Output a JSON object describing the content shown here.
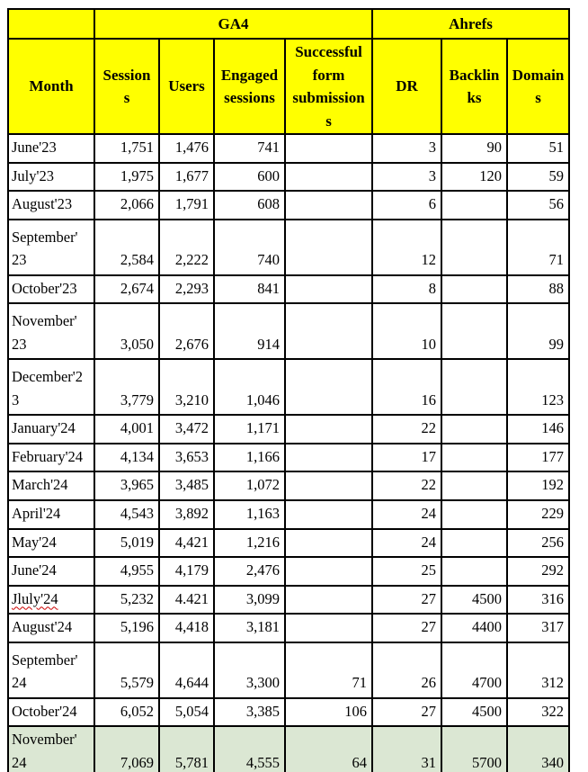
{
  "table": {
    "header_groups": [
      {
        "label": "",
        "colspan": 1
      },
      {
        "label": "GA4",
        "colspan": 4
      },
      {
        "label": "Ahrefs",
        "colspan": 3
      }
    ],
    "column_headers": [
      "Month",
      "Session\ns",
      "Users",
      "Engaged\nsessions",
      "Successful\nform\nsubmission\ns",
      "DR",
      "Backlin\nks",
      "Domain\ns"
    ],
    "rows": [
      {
        "month": "June'23",
        "tall": false,
        "highlighted": false,
        "misspelled": false,
        "values": [
          "1,751",
          "1,476",
          "741",
          "",
          "3",
          "90",
          "51"
        ]
      },
      {
        "month": "July'23",
        "tall": false,
        "highlighted": false,
        "misspelled": false,
        "values": [
          "1,975",
          "1,677",
          "600",
          "",
          "3",
          "120",
          "59"
        ]
      },
      {
        "month": "August'23",
        "tall": false,
        "highlighted": false,
        "misspelled": false,
        "values": [
          "2,066",
          "1,791",
          "608",
          "",
          "6",
          "",
          "56"
        ]
      },
      {
        "month": "September'\n23",
        "tall": true,
        "highlighted": false,
        "misspelled": false,
        "values": [
          "2,584",
          "2,222",
          "740",
          "",
          "12",
          "",
          "71"
        ]
      },
      {
        "month": "October'23",
        "tall": false,
        "highlighted": false,
        "misspelled": false,
        "values": [
          "2,674",
          "2,293",
          "841",
          "",
          "8",
          "",
          "88"
        ]
      },
      {
        "month": "November'\n23",
        "tall": true,
        "highlighted": false,
        "misspelled": false,
        "values": [
          "3,050",
          "2,676",
          "914",
          "",
          "10",
          "",
          "99"
        ]
      },
      {
        "month": "December'2\n3",
        "tall": true,
        "highlighted": false,
        "misspelled": false,
        "values": [
          "3,779",
          "3,210",
          "1,046",
          "",
          "16",
          "",
          "123"
        ]
      },
      {
        "month": "January'24",
        "tall": false,
        "highlighted": false,
        "misspelled": false,
        "values": [
          "4,001",
          "3,472",
          "1,171",
          "",
          "22",
          "",
          "146"
        ]
      },
      {
        "month": "February'24",
        "tall": false,
        "highlighted": false,
        "misspelled": false,
        "values": [
          "4,134",
          "3,653",
          "1,166",
          "",
          "17",
          "",
          "177"
        ]
      },
      {
        "month": "March'24",
        "tall": false,
        "highlighted": false,
        "misspelled": false,
        "values": [
          "3,965",
          "3,485",
          "1,072",
          "",
          "22",
          "",
          "192"
        ]
      },
      {
        "month": "April'24",
        "tall": false,
        "highlighted": false,
        "misspelled": false,
        "values": [
          "4,543",
          "3,892",
          "1,163",
          "",
          "24",
          "",
          "229"
        ]
      },
      {
        "month": "May'24",
        "tall": false,
        "highlighted": false,
        "misspelled": false,
        "values": [
          "5,019",
          "4,421",
          "1,216",
          "",
          "24",
          "",
          "256"
        ]
      },
      {
        "month": "June'24",
        "tall": false,
        "highlighted": false,
        "misspelled": false,
        "values": [
          "4,955",
          "4,179",
          "2,476",
          "",
          "25",
          "",
          "292"
        ]
      },
      {
        "month": "Jluly'24",
        "tall": false,
        "highlighted": false,
        "misspelled": true,
        "values": [
          "5,232",
          "4.421",
          "3,099",
          "",
          "27",
          "4500",
          "316"
        ]
      },
      {
        "month": "August'24",
        "tall": false,
        "highlighted": false,
        "misspelled": false,
        "values": [
          "5,196",
          "4,418",
          "3,181",
          "",
          "27",
          "4400",
          "317"
        ]
      },
      {
        "month": "September'\n24",
        "tall": true,
        "highlighted": false,
        "misspelled": false,
        "values": [
          "5,579",
          "4,644",
          "3,300",
          "71",
          "26",
          "4700",
          "312"
        ]
      },
      {
        "month": "October'24",
        "tall": false,
        "highlighted": false,
        "misspelled": false,
        "values": [
          "6,052",
          "5,054",
          "3,385",
          "106",
          "27",
          "4500",
          "322"
        ]
      },
      {
        "month": "November'\n24",
        "tall": true,
        "highlighted": true,
        "misspelled": false,
        "values": [
          "7,069",
          "5,781",
          "4,555",
          "64",
          "31",
          "5700",
          "340"
        ]
      }
    ],
    "colors": {
      "header_bg": "#ffff00",
      "highlight_row_bg": "#dbe7d3",
      "border": "#000000",
      "spellcheck_underline": "#cc0000",
      "text": "#000000"
    }
  }
}
